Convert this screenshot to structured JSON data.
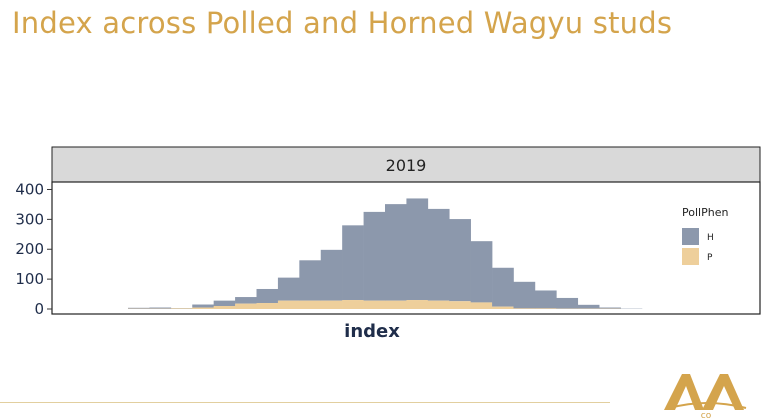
{
  "slide": {
    "title": "Index across Polled and Horned Wagyu studs"
  },
  "logo": {
    "name": "AA co logo",
    "text": "co",
    "color": "#d4a44c"
  },
  "colors": {
    "title": "#d4a44c",
    "H": "#8c98ac",
    "P": "#eecf9b",
    "strip_bg": "#d9d9d9",
    "axis_text": "#1f2d4a"
  },
  "chart_data": {
    "type": "bar",
    "subtype": "stacked-histogram",
    "facet_label": "2019",
    "xlabel": "index",
    "ylabel": "",
    "ylim": [
      0,
      415
    ],
    "yticks": [
      0,
      100,
      200,
      300,
      400
    ],
    "x_ticks_shown": false,
    "legend": {
      "title": "PollPhen",
      "position": "right",
      "entries": [
        "H",
        "P"
      ]
    },
    "bins": 24,
    "series": [
      {
        "name": "H",
        "values": [
          3,
          4,
          1,
          10,
          18,
          22,
          47,
          77,
          135,
          170,
          250,
          297,
          323,
          340,
          307,
          275,
          205,
          130,
          89,
          60,
          36,
          13,
          4,
          1
        ]
      },
      {
        "name": "P",
        "values": [
          1,
          1,
          2,
          5,
          10,
          18,
          20,
          28,
          28,
          28,
          30,
          28,
          28,
          30,
          28,
          26,
          22,
          8,
          2,
          2,
          1,
          1,
          1,
          0
        ]
      }
    ]
  }
}
